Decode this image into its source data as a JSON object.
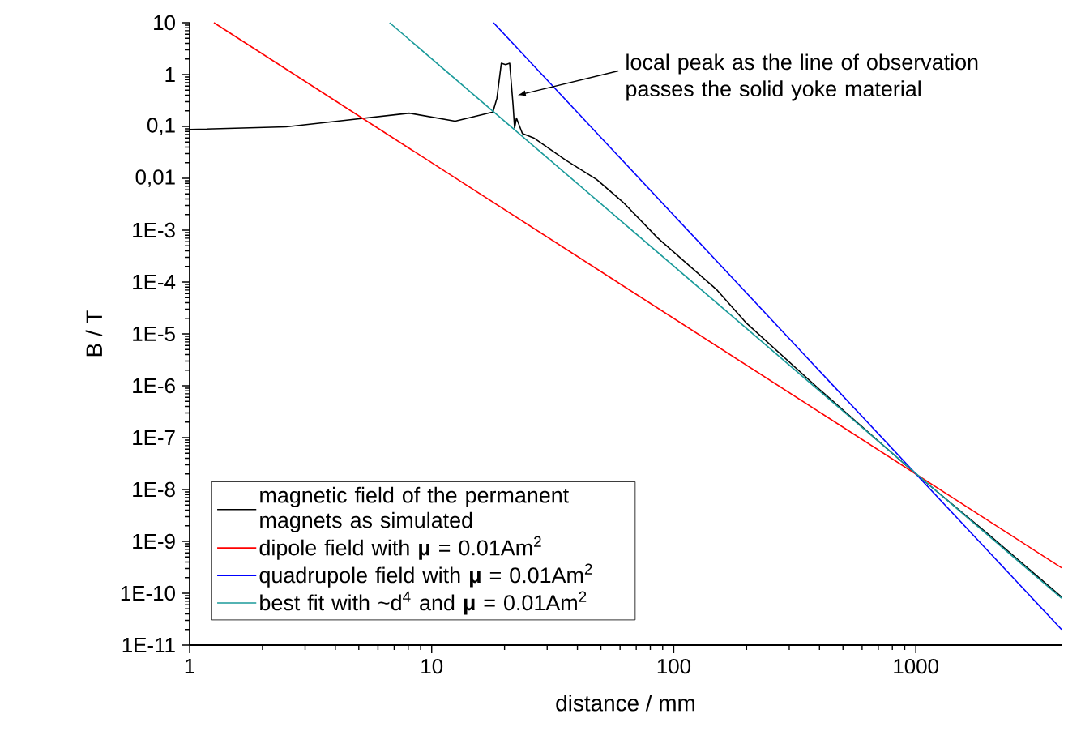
{
  "chart_data": {
    "type": "line",
    "xlabel": "distance / mm",
    "ylabel": "B / T",
    "log": "xy",
    "legend": "bottom left",
    "xlim": [
      1,
      4000
    ],
    "ylim": [
      1e-11,
      10
    ],
    "xticks": [
      1,
      10,
      100,
      1000
    ],
    "yticks": [
      10,
      1,
      {
        "value": 0.1,
        "label": "0,1"
      },
      {
        "value": 0.01,
        "label": "0,01"
      },
      {
        "value": 0.001,
        "label": "1E-3"
      },
      {
        "value": 0.0001,
        "label": "1E-4"
      },
      {
        "value": 1e-05,
        "label": "1E-5"
      },
      {
        "value": 1e-06,
        "label": "1E-6"
      },
      {
        "value": 1e-07,
        "label": "1E-7"
      },
      {
        "value": 1e-08,
        "label": "1E-8"
      },
      {
        "value": 1e-09,
        "label": "1E-9"
      },
      {
        "value": 1e-10,
        "label": "1E-10"
      },
      {
        "value": 1e-11,
        "label": "1E-11"
      }
    ],
    "series": [
      {
        "name": "magnetic field of the permanent magnets as simulated",
        "color": "#000000",
        "x": [
          1,
          2.5,
          4.3,
          8.1,
          12.5,
          15.4,
          17.9,
          18.6,
          19.4,
          20.2,
          21,
          21.7,
          22,
          22.4,
          23.7,
          26.4,
          36,
          48,
          62,
          86,
          151,
          200,
          400,
          1000,
          2000,
          4000
        ],
        "values": [
          0.087,
          0.098,
          0.13,
          0.18,
          0.126,
          0.16,
          0.19,
          0.35,
          1.65,
          1.55,
          1.65,
          0.25,
          0.093,
          0.145,
          0.073,
          0.06,
          0.022,
          0.0095,
          0.0034,
          0.0007,
          7e-05,
          1.6e-05,
          8.5e-07,
          2e-08,
          1.35e-09,
          8.5e-11
        ]
      },
      {
        "name": "dipole field with **μ** = 0.01Am$^{2}$",
        "color": "#ff0000",
        "x": [
          1.26,
          4000
        ],
        "values": [
          10,
          3.1e-10
        ]
      },
      {
        "name": "quadrupole field with **μ** = 0.01Am$^{2}$",
        "color": "#0000ff",
        "x": [
          18,
          4000
        ],
        "values": [
          10,
          2e-11
        ]
      },
      {
        "name": "best fit with ~d$^{4}$ and **μ** = 0.01Am$^{2}$",
        "color": "#1a9a9a",
        "x": [
          6.7,
          4000
        ],
        "values": [
          10,
          8e-11
        ]
      }
    ],
    "annotations": [
      {
        "text": "local peak as the line of observation passes the solid yoke material",
        "x": 22.7,
        "y": 0.4
      }
    ]
  }
}
